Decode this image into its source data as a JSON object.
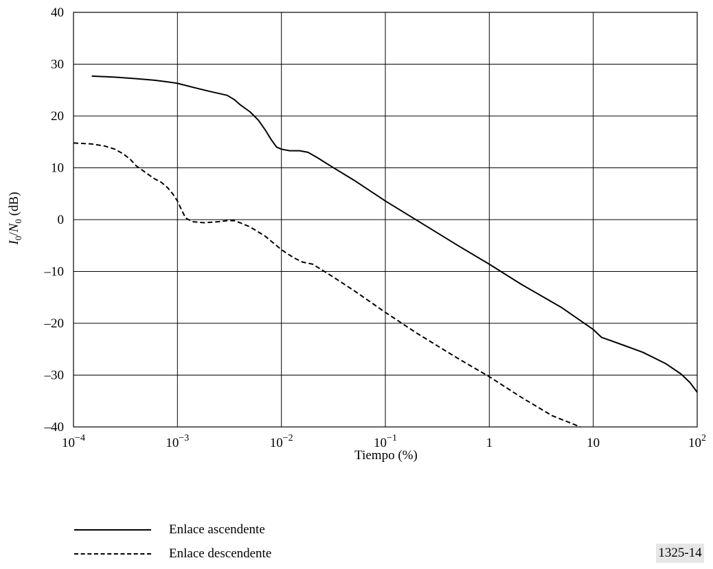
{
  "chart_data": {
    "type": "line",
    "xscale": "log",
    "xlim": [
      0.0001,
      100
    ],
    "ylim": [
      -40,
      40
    ],
    "xlabel": "Tiempo (%)",
    "ylabel": {
      "base1": "I",
      "sub1": "0",
      "slash": "/",
      "base2": "N",
      "sub2": "0",
      "unit": " (dB)"
    },
    "grid": true,
    "x_ticks": [
      {
        "value": 0.0001,
        "base": "10",
        "exp": "−4"
      },
      {
        "value": 0.001,
        "base": "10",
        "exp": "−3"
      },
      {
        "value": 0.01,
        "base": "10",
        "exp": "−2"
      },
      {
        "value": 0.1,
        "base": "10",
        "exp": "−1"
      },
      {
        "value": 1,
        "base": "1",
        "exp": ""
      },
      {
        "value": 10,
        "base": "10",
        "exp": ""
      },
      {
        "value": 100,
        "base": "10",
        "exp": "2"
      }
    ],
    "y_ticks": [
      {
        "value": 40,
        "label": "40"
      },
      {
        "value": 30,
        "label": "30"
      },
      {
        "value": 20,
        "label": "20"
      },
      {
        "value": 10,
        "label": "10"
      },
      {
        "value": 0,
        "label": "0"
      },
      {
        "value": -10,
        "label": "–10"
      },
      {
        "value": -20,
        "label": "–20"
      },
      {
        "value": -30,
        "label": "–30"
      },
      {
        "value": -40,
        "label": "–40"
      }
    ],
    "series": [
      {
        "name": "Enlace ascendente",
        "style": "solid",
        "points": [
          [
            0.00015,
            27.7
          ],
          [
            0.00025,
            27.5
          ],
          [
            0.0004,
            27.2
          ],
          [
            0.0006,
            26.9
          ],
          [
            0.0008,
            26.6
          ],
          [
            0.001,
            26.3
          ],
          [
            0.0015,
            25.4
          ],
          [
            0.002,
            24.8
          ],
          [
            0.003,
            24.0
          ],
          [
            0.0035,
            23.2
          ],
          [
            0.004,
            22.2
          ],
          [
            0.005,
            20.8
          ],
          [
            0.006,
            19.2
          ],
          [
            0.007,
            17.3
          ],
          [
            0.008,
            15.4
          ],
          [
            0.009,
            14.0
          ],
          [
            0.01,
            13.6
          ],
          [
            0.012,
            13.3
          ],
          [
            0.015,
            13.3
          ],
          [
            0.018,
            13.0
          ],
          [
            0.022,
            12.0
          ],
          [
            0.03,
            10.3
          ],
          [
            0.05,
            7.6
          ],
          [
            0.1,
            3.6
          ],
          [
            0.2,
            -0.1
          ],
          [
            0.5,
            -5.0
          ],
          [
            1,
            -8.6
          ],
          [
            2,
            -12.4
          ],
          [
            5,
            -17.0
          ],
          [
            10,
            -21.2
          ],
          [
            12,
            -22.7
          ],
          [
            20,
            -24.3
          ],
          [
            30,
            -25.6
          ],
          [
            50,
            -27.8
          ],
          [
            70,
            -29.8
          ],
          [
            85,
            -31.4
          ],
          [
            100,
            -33.3
          ]
        ]
      },
      {
        "name": "Enlace descendente",
        "style": "dashed",
        "points": [
          [
            0.0001,
            14.8
          ],
          [
            0.00015,
            14.6
          ],
          [
            0.0002,
            14.2
          ],
          [
            0.00025,
            13.6
          ],
          [
            0.0003,
            12.7
          ],
          [
            0.00035,
            11.7
          ],
          [
            0.0004,
            10.4
          ],
          [
            0.0005,
            9.0
          ],
          [
            0.0006,
            7.9
          ],
          [
            0.0007,
            7.2
          ],
          [
            0.0008,
            6.2
          ],
          [
            0.0009,
            5.0
          ],
          [
            0.001,
            3.6
          ],
          [
            0.0011,
            1.8
          ],
          [
            0.0012,
            0.3
          ],
          [
            0.0014,
            -0.4
          ],
          [
            0.0018,
            -0.6
          ],
          [
            0.0025,
            -0.4
          ],
          [
            0.003,
            -0.2
          ],
          [
            0.0035,
            -0.2
          ],
          [
            0.004,
            -0.6
          ],
          [
            0.005,
            -1.4
          ],
          [
            0.007,
            -3.2
          ],
          [
            0.01,
            -5.8
          ],
          [
            0.013,
            -7.3
          ],
          [
            0.016,
            -8.2
          ],
          [
            0.02,
            -8.6
          ],
          [
            0.03,
            -10.8
          ],
          [
            0.05,
            -13.7
          ],
          [
            0.1,
            -17.9
          ],
          [
            0.2,
            -21.9
          ],
          [
            0.5,
            -26.8
          ],
          [
            1,
            -30.3
          ],
          [
            2,
            -34.2
          ],
          [
            4,
            -37.8
          ],
          [
            7.5,
            -40
          ]
        ]
      }
    ],
    "figure_id": "1325-14"
  }
}
